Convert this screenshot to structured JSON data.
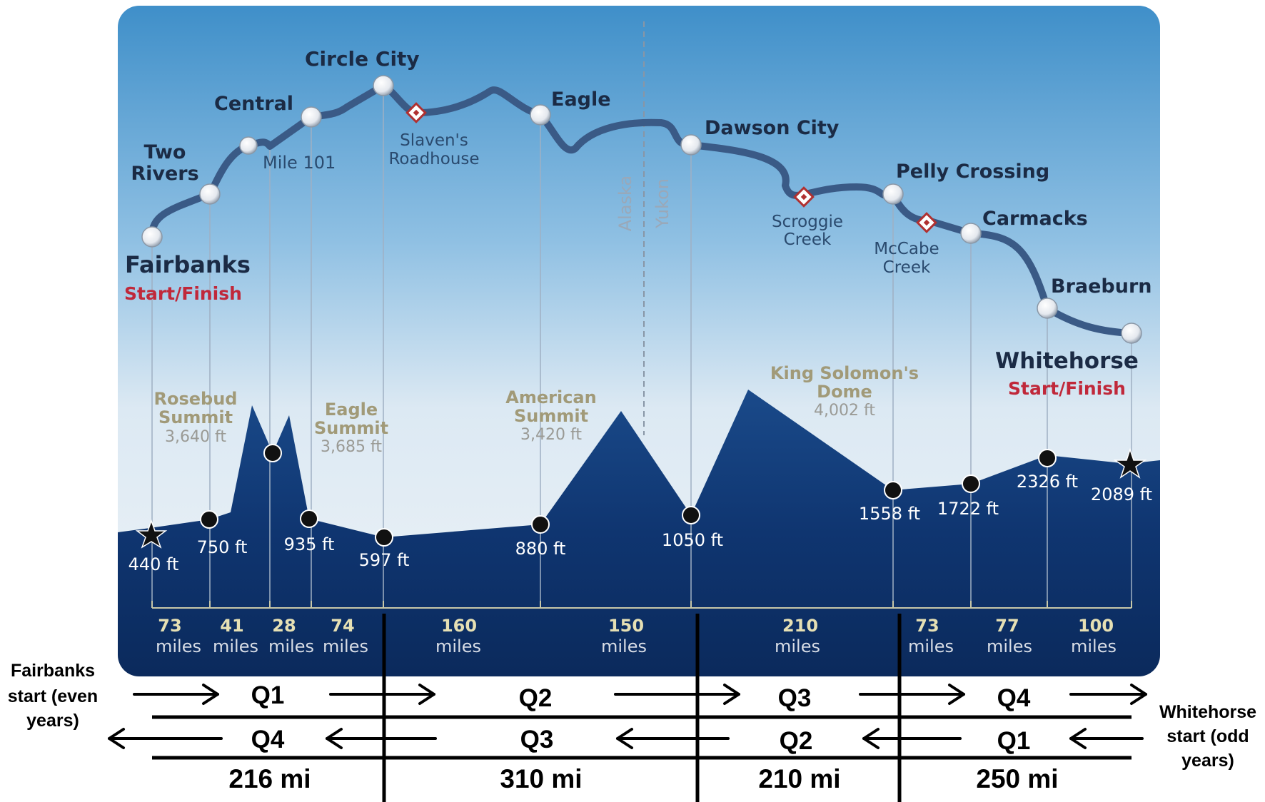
{
  "route_stops": [
    {
      "name": "Fairbanks",
      "tag": "Start/Finish",
      "elev": "440 ft"
    },
    {
      "name": "Two Rivers",
      "elev": "750 ft"
    },
    {
      "name": "Mile 101"
    },
    {
      "name": "Central",
      "elev": "935 ft"
    },
    {
      "name": "Circle City",
      "elev": "597 ft"
    },
    {
      "name": "Slaven's Roadhouse"
    },
    {
      "name": "Eagle",
      "elev": "880 ft"
    },
    {
      "name": "Dawson City",
      "elev": "1050 ft"
    },
    {
      "name": "Scroggie Creek"
    },
    {
      "name": "Pelly Crossing",
      "elev": "1558 ft"
    },
    {
      "name": "McCabe Creek"
    },
    {
      "name": "Carmacks",
      "elev": "1722 ft"
    },
    {
      "name": "Braeburn",
      "elev": "2326 ft"
    },
    {
      "name": "Whitehorse",
      "tag": "Start/Finish",
      "elev": "2089 ft"
    }
  ],
  "border": {
    "left": "Alaska",
    "right": "Yukon"
  },
  "summits": [
    {
      "name": "Rosebud Summit",
      "elev": "3,640 ft"
    },
    {
      "name": "Eagle Summit",
      "elev": "3,685 ft"
    },
    {
      "name": "American Summit",
      "elev": "3,420 ft"
    },
    {
      "name": "King Solomon's Dome",
      "elev": "4,002 ft"
    }
  ],
  "segments": [
    {
      "num": "73",
      "unit": "miles"
    },
    {
      "num": "41",
      "unit": "miles"
    },
    {
      "num": "28",
      "unit": "miles"
    },
    {
      "num": "74",
      "unit": "miles"
    },
    {
      "num": "160",
      "unit": "miles"
    },
    {
      "num": "150",
      "unit": "miles"
    },
    {
      "num": "210",
      "unit": "miles"
    },
    {
      "num": "73",
      "unit": "miles"
    },
    {
      "num": "77",
      "unit": "miles"
    },
    {
      "num": "100",
      "unit": "miles"
    }
  ],
  "quarters_even": [
    "Q1",
    "Q2",
    "Q3",
    "Q4"
  ],
  "quarters_odd": [
    "Q4",
    "Q3",
    "Q2",
    "Q1"
  ],
  "quarter_distances": [
    "216 mi",
    "310 mi",
    "210 mi",
    "250 mi"
  ],
  "left_note": "Fairbanks start (even years)",
  "right_note": "Whitehorse start (odd years)",
  "colors": {
    "route": "#3a5a86",
    "mountain": "#0f3570",
    "panel_top": "#3f8fc9",
    "startfin": "#c0283a"
  }
}
